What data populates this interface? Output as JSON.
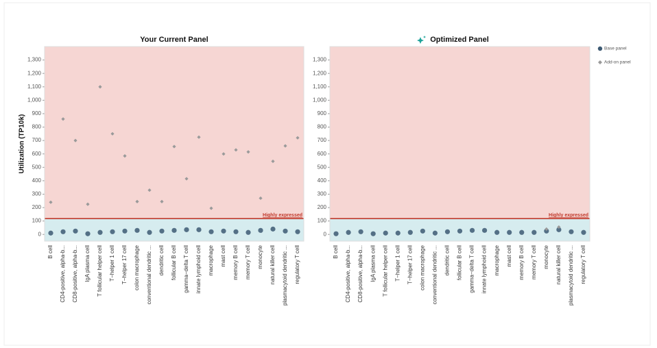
{
  "chart_data": [
    {
      "type": "scatter",
      "title": "Your Current Panel",
      "y_label": "Utilization (TP10k)",
      "categories": [
        "B cell",
        "CD4-positive, alpha-b...",
        "CD8-positive, alpha-b...",
        "IgA plasma cell",
        "T follicular helper cell",
        "T−helper 1 cell",
        "T−helper 17 cell",
        "colon macrophage",
        "conventional dendritic ...",
        "dendritic cell",
        "follicular B cell",
        "gamma−delta T cell",
        "innate lymphoid cell",
        "macrophage",
        "mast cell",
        "memory B cell",
        "memory T cell",
        "monocyte",
        "natural killer cell",
        "plasmacytoid dendritic ...",
        "regulatory T cell"
      ],
      "series": [
        {
          "color": "#3d5a73",
          "marker": "circle",
          "values": [
            10,
            20,
            25,
            5,
            15,
            20,
            25,
            30,
            15,
            25,
            30,
            35,
            35,
            20,
            25,
            20,
            15,
            30,
            40,
            25,
            20
          ]
        },
        {
          "color": "#9a9a9a",
          "marker": "diamond",
          "values": [
            240,
            860,
            700,
            225,
            1100,
            750,
            585,
            245,
            330,
            245,
            655,
            415,
            725,
            195,
            600,
            630,
            615,
            270,
            545,
            660,
            720
          ]
        }
      ],
      "threshold": {
        "value": 118,
        "label": "Highly expressed"
      },
      "ylim": [
        -50,
        1400
      ],
      "yticks": [
        0,
        100,
        200,
        300,
        400,
        500,
        600,
        700,
        800,
        900,
        {
          "value": 1000,
          "label": "1,000"
        },
        {
          "value": 1100,
          "label": "1,100"
        },
        {
          "value": 1200,
          "label": "1,200"
        },
        {
          "value": 1300,
          "label": "1,300"
        }
      ]
    },
    {
      "type": "scatter",
      "title": "Optimized Panel",
      "categories": [
        "B cell",
        "CD4-positive, alpha-b...",
        "CD8-positive, alpha-b...",
        "IgA plasma cell",
        "T follicular helper cell",
        "T−helper 1 cell",
        "T−helper 17 cell",
        "colon macrophage",
        "conventional dendritic ...",
        "dendritic cell",
        "follicular B cell",
        "gamma−delta T cell",
        "innate lymphoid cell",
        "macrophage",
        "mast cell",
        "memory B cell",
        "memory T cell",
        "monocyte",
        "natural killer cell",
        "plasmacytoid dendritic ...",
        "regulatory T cell"
      ],
      "series": [
        {
          "name": "Base panel",
          "color": "#3d5a73",
          "marker": "circle",
          "values": [
            5,
            15,
            20,
            5,
            10,
            10,
            15,
            25,
            10,
            20,
            25,
            30,
            30,
            15,
            15,
            15,
            15,
            25,
            35,
            20,
            15
          ]
        },
        {
          "name": "Add-on panel",
          "color": "#9a9a9a",
          "marker": "diamond",
          "values": [
            null,
            null,
            null,
            null,
            null,
            null,
            null,
            null,
            null,
            null,
            null,
            null,
            null,
            null,
            null,
            null,
            null,
            40,
            55,
            null,
            null
          ]
        }
      ],
      "threshold": {
        "value": 118,
        "label": "Highly expressed"
      },
      "ylim": [
        -50,
        1400
      ],
      "yticks": [
        0,
        100,
        200,
        300,
        400,
        500,
        600,
        700,
        800,
        900,
        {
          "value": 1000,
          "label": "1,000"
        },
        {
          "value": 1100,
          "label": "1,100"
        },
        {
          "value": 1200,
          "label": "1,200"
        },
        {
          "value": 1300,
          "label": "1,300"
        }
      ]
    }
  ]
}
